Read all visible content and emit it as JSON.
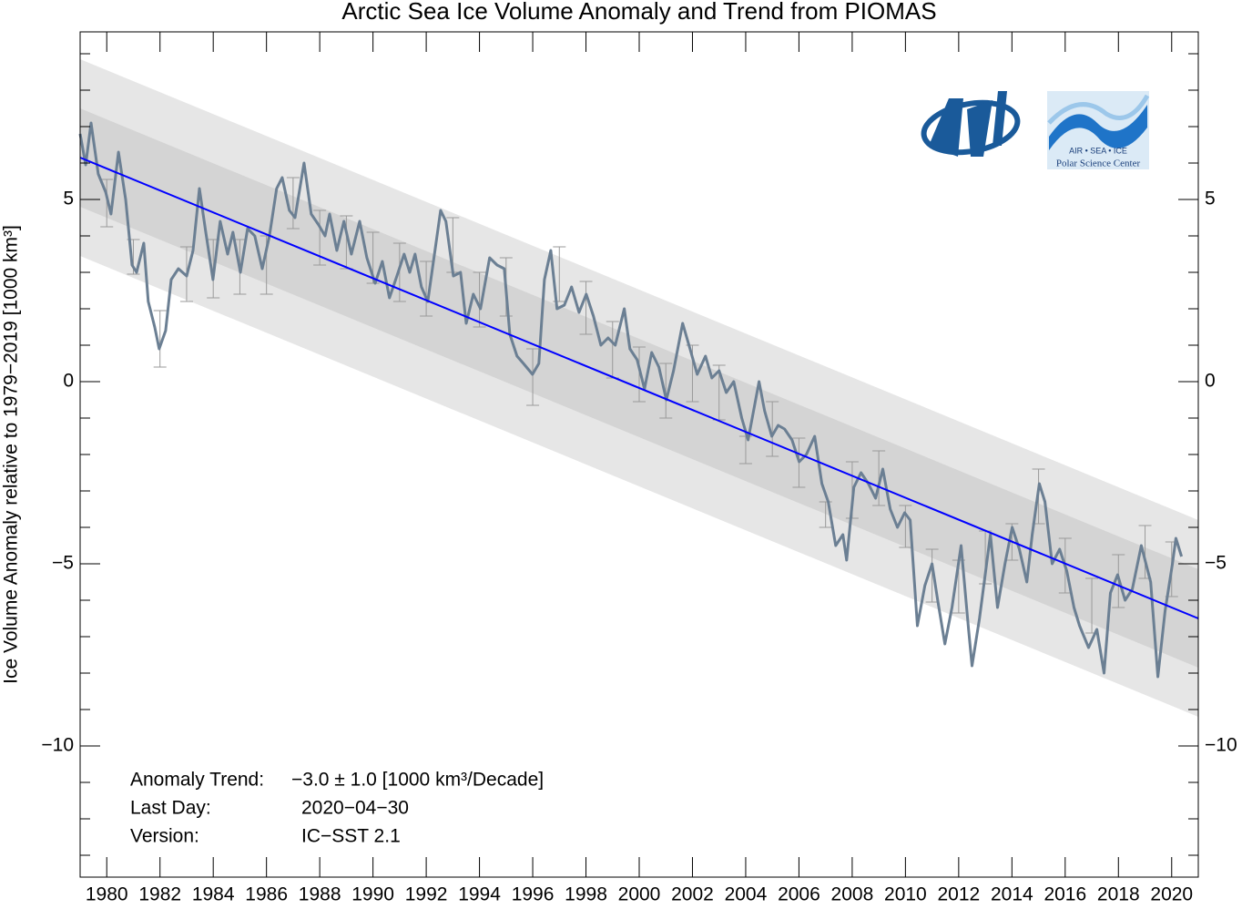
{
  "chart_data": {
    "type": "line",
    "title": "Arctic Sea Ice Volume Anomaly and Trend from PIOMAS",
    "ylabel": "Ice Volume Anomaly relative to 1979−2019 [1000 km³]",
    "xlim": [
      1979,
      2021
    ],
    "ylim": [
      -13.6,
      9.6
    ],
    "xticks": [
      1980,
      1982,
      1984,
      1986,
      1988,
      1990,
      1992,
      1994,
      1996,
      1998,
      2000,
      2002,
      2004,
      2006,
      2008,
      2010,
      2012,
      2014,
      2016,
      2018,
      2020
    ],
    "yticks": [
      {
        "value": -10,
        "label": "−10"
      },
      {
        "value": -5,
        "label": "−5"
      },
      0,
      5
    ],
    "yticks_minor": [
      -13,
      -12,
      -11,
      -9,
      -8,
      -7,
      -6,
      -4,
      -3,
      -2,
      -1,
      1,
      2,
      3,
      4,
      6,
      7,
      8,
      9
    ],
    "series": [
      {
        "color": "#6b7f93",
        "x": [
          1979.0,
          1979.21,
          1979.41,
          1979.68,
          1979.96,
          1980.16,
          1980.44,
          1980.71,
          1980.95,
          1981.12,
          1981.39,
          1981.56,
          1981.8,
          1981.97,
          1982.21,
          1982.42,
          1982.69,
          1983.0,
          1983.24,
          1983.48,
          1983.72,
          1983.99,
          1984.26,
          1984.54,
          1984.74,
          1985.02,
          1985.29,
          1985.56,
          1985.84,
          1986.11,
          1986.38,
          1986.59,
          1986.86,
          1987.07,
          1987.41,
          1987.68,
          1987.96,
          1988.2,
          1988.37,
          1988.64,
          1988.91,
          1989.19,
          1989.5,
          1989.77,
          1990.08,
          1990.35,
          1990.62,
          1990.9,
          1991.17,
          1991.38,
          1991.58,
          1991.82,
          1992.06,
          1992.33,
          1992.54,
          1992.74,
          1993.02,
          1993.29,
          1993.5,
          1993.77,
          1994.04,
          1994.38,
          1994.66,
          1994.93,
          1995.14,
          1995.41,
          1995.65,
          1995.99,
          1996.23,
          1996.44,
          1996.68,
          1996.91,
          1997.19,
          1997.46,
          1997.74,
          1998.01,
          1998.28,
          1998.56,
          1998.83,
          1999.1,
          1999.44,
          1999.65,
          1999.92,
          2000.2,
          2000.47,
          2000.74,
          2001.02,
          2001.29,
          2001.63,
          2001.91,
          2002.18,
          2002.49,
          2002.73,
          2003.0,
          2003.27,
          2003.55,
          2003.85,
          2004.09,
          2004.5,
          2004.71,
          2004.98,
          2005.22,
          2005.46,
          2005.74,
          2006.01,
          2006.28,
          2006.59,
          2006.86,
          2007.1,
          2007.38,
          2007.65,
          2007.79,
          2008.06,
          2008.33,
          2008.61,
          2008.88,
          2009.15,
          2009.43,
          2009.7,
          2009.97,
          2010.18,
          2010.45,
          2010.73,
          2011.0,
          2011.21,
          2011.48,
          2011.75,
          2012.09,
          2012.37,
          2012.5,
          2012.78,
          2013.19,
          2013.46,
          2013.74,
          2014.01,
          2014.28,
          2014.56,
          2014.76,
          2015.03,
          2015.24,
          2015.51,
          2015.79,
          2016.06,
          2016.33,
          2016.54,
          2016.88,
          2017.19,
          2017.46,
          2017.7,
          2017.97,
          2018.25,
          2018.52,
          2018.86,
          2019.21,
          2019.48,
          2019.75,
          2020.03,
          2020.16,
          2020.37
        ],
        "values": [
          6.8,
          5.95,
          7.1,
          5.7,
          5.2,
          4.6,
          6.3,
          5.0,
          3.2,
          3.0,
          3.8,
          2.2,
          1.5,
          0.9,
          1.4,
          2.8,
          3.1,
          2.9,
          3.6,
          5.3,
          4.1,
          2.8,
          4.4,
          3.5,
          4.1,
          3.0,
          4.2,
          4.0,
          3.1,
          4.0,
          5.3,
          5.6,
          4.7,
          4.5,
          6.0,
          4.6,
          4.3,
          4.0,
          4.6,
          3.6,
          4.4,
          3.5,
          4.4,
          3.4,
          2.7,
          3.3,
          2.3,
          2.9,
          3.5,
          3.0,
          3.5,
          2.6,
          2.2,
          3.6,
          4.7,
          4.4,
          2.9,
          3.0,
          1.6,
          2.4,
          2.0,
          3.4,
          3.2,
          3.1,
          1.3,
          0.7,
          0.5,
          0.2,
          0.5,
          2.8,
          3.6,
          2.0,
          2.1,
          2.6,
          1.9,
          2.4,
          1.8,
          1.0,
          1.2,
          1.0,
          2.0,
          0.9,
          0.6,
          -0.2,
          0.8,
          0.4,
          -0.5,
          0.3,
          1.6,
          0.9,
          0.2,
          0.7,
          0.1,
          0.3,
          -0.3,
          0.0,
          -1.0,
          -1.6,
          0.0,
          -0.8,
          -1.5,
          -1.2,
          -1.3,
          -1.6,
          -2.2,
          -2.0,
          -1.5,
          -2.8,
          -3.3,
          -4.5,
          -4.2,
          -4.9,
          -2.9,
          -2.5,
          -2.8,
          -3.2,
          -2.4,
          -3.5,
          -4.0,
          -3.6,
          -3.8,
          -6.7,
          -5.6,
          -5.0,
          -6.0,
          -7.2,
          -6.2,
          -4.5,
          -6.8,
          -7.8,
          -6.5,
          -4.2,
          -6.2,
          -5.0,
          -4.0,
          -4.6,
          -5.5,
          -4.2,
          -2.8,
          -3.3,
          -5.0,
          -4.6,
          -5.2,
          -6.2,
          -6.7,
          -7.3,
          -6.8,
          -8.0,
          -5.8,
          -5.3,
          -6.0,
          -5.7,
          -4.5,
          -5.5,
          -8.1,
          -6.3,
          -5.0,
          -4.3,
          -4.8
        ]
      }
    ],
    "error_bars": {
      "color": "#9a9a9a",
      "x": [
        1980,
        1981,
        1982,
        1983,
        1984,
        1985,
        1986,
        1987,
        1988,
        1989,
        1990,
        1991,
        1992,
        1993,
        1994,
        1995,
        1996,
        1997,
        1998,
        1999,
        2000,
        2001,
        2002,
        2003,
        2004,
        2005,
        2006,
        2007,
        2008,
        2009,
        2010,
        2011,
        2012,
        2013,
        2014,
        2015,
        2016,
        2017,
        2018,
        2019,
        2020
      ],
      "high": [
        5.55,
        3.9,
        1.95,
        3.7,
        3.9,
        3.9,
        4.0,
        5.6,
        4.7,
        4.55,
        4.1,
        3.8,
        3.3,
        4.5,
        3.0,
        3.4,
        0.9,
        3.7,
        2.75,
        1.65,
        0.95,
        0.5,
        1.0,
        0.45,
        -1.5,
        -0.55,
        -1.55,
        -3.3,
        -2.2,
        -1.9,
        -3.4,
        -4.6,
        -4.9,
        -4.1,
        -3.9,
        -2.4,
        -4.3,
        -5.4,
        -4.75,
        -3.95,
        -4.4
      ],
      "low": [
        4.25,
        2.95,
        0.4,
        2.2,
        2.3,
        2.4,
        2.4,
        4.2,
        3.2,
        3.1,
        2.7,
        2.2,
        1.8,
        3.0,
        1.5,
        1.8,
        -0.65,
        2.2,
        1.3,
        0.1,
        -0.55,
        -1.0,
        -0.55,
        -1.05,
        -2.25,
        -2.05,
        -2.9,
        -4.0,
        -3.75,
        -3.4,
        -4.55,
        -6.05,
        -6.35,
        -5.55,
        -4.9,
        -3.9,
        -5.8,
        -6.9,
        -6.2,
        -5.4,
        -5.9
      ]
    },
    "trend": {
      "color": "#0000ff",
      "x": [
        1979,
        2021
      ],
      "values": [
        6.15,
        -6.5
      ],
      "band_inner": 1.35,
      "band_outer": 2.7,
      "inner_color": "#d4d4d4",
      "outer_color": "#e6e6e6"
    },
    "annotations": [
      {
        "label": "Anomaly Trend:",
        "text": "−3.0 ± 1.0 [1000 km³/Decade]"
      },
      {
        "label": "Last Day:",
        "text": "2020−04−30"
      },
      {
        "label": "Version:",
        "text": "IC−SST 2.1"
      }
    ],
    "logo": {
      "line1": "AIR  •  SEA  •  ICE",
      "line2": "Polar Science Center"
    }
  }
}
